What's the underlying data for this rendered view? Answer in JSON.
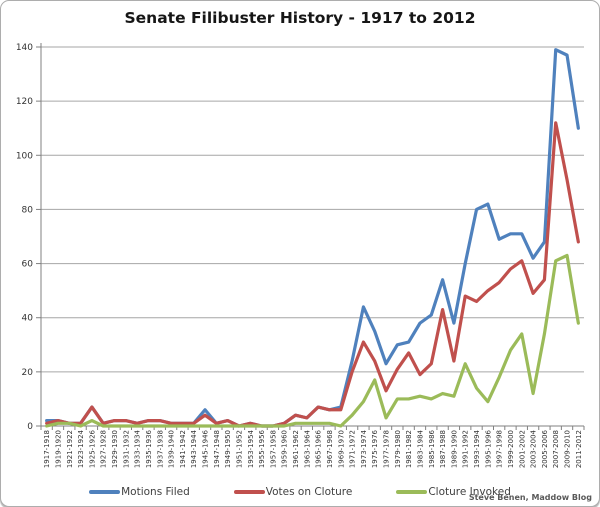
{
  "title": "Senate Filibuster History - 1917 to 2012",
  "credit": "Steve Benen, Maddow Blog",
  "chart_data": {
    "type": "line",
    "title": "Senate Filibuster History - 1917 to 2012",
    "xlabel": "",
    "ylabel": "",
    "y_min": 0,
    "y_max": 140,
    "y_step": 20,
    "y_ticks": [
      0,
      20,
      40,
      60,
      80,
      100,
      120,
      140
    ],
    "grid": "horizontal",
    "legend_position": "bottom",
    "categories": [
      "1917-1918",
      "1919-1920",
      "1921-1922",
      "1923-1924",
      "1925-1926",
      "1927-1928",
      "1929-1930",
      "1931-1932",
      "1933-1934",
      "1935-1936",
      "1937-1938",
      "1939-1940",
      "1941-1942",
      "1943-1944",
      "1945-1946",
      "1947-1948",
      "1949-1950",
      "1951-1952",
      "1953-1954",
      "1955-1956",
      "1957-1958",
      "1959-1960",
      "1961-1962",
      "1963-1964",
      "1965-1966",
      "1967-1968",
      "1969-1970",
      "1971-1972",
      "1973-1974",
      "1975-1976",
      "1977-1978",
      "1979-1980",
      "1981-1982",
      "1983-1984",
      "1985-1986",
      "1987-1988",
      "1989-1990",
      "1991-1992",
      "1993-1994",
      "1995-1996",
      "1997-1998",
      "1999-2000",
      "2001-2002",
      "2003-2004",
      "2005-2006",
      "2007-2008",
      "2009-2010",
      "2011-2012"
    ],
    "series": [
      {
        "name": "Motions Filed",
        "color": "#4F81BD",
        "values": [
          2,
          2,
          1,
          1,
          7,
          1,
          2,
          2,
          1,
          2,
          2,
          1,
          1,
          1,
          6,
          1,
          2,
          0,
          1,
          0,
          0,
          1,
          4,
          3,
          7,
          6,
          7,
          24,
          44,
          35,
          23,
          30,
          31,
          38,
          41,
          54,
          38,
          60,
          80,
          82,
          69,
          71,
          71,
          62,
          68,
          139,
          137,
          110
        ]
      },
      {
        "name": "Votes on Cloture",
        "color": "#C0504D",
        "values": [
          1,
          2,
          1,
          1,
          7,
          1,
          2,
          2,
          1,
          2,
          2,
          1,
          1,
          1,
          4,
          1,
          2,
          0,
          1,
          0,
          0,
          1,
          4,
          3,
          7,
          6,
          6,
          20,
          31,
          24,
          13,
          21,
          27,
          19,
          23,
          43,
          24,
          48,
          46,
          50,
          53,
          58,
          61,
          49,
          54,
          112,
          91,
          68
        ]
      },
      {
        "name": "Cloture Invoked",
        "color": "#9BBB59",
        "values": [
          0,
          1,
          1,
          0,
          2,
          0,
          0,
          0,
          0,
          0,
          0,
          0,
          0,
          0,
          0,
          0,
          0,
          0,
          0,
          0,
          0,
          0,
          1,
          1,
          1,
          1,
          0,
          4,
          9,
          17,
          3,
          10,
          10,
          11,
          10,
          12,
          11,
          23,
          14,
          9,
          18,
          28,
          34,
          12,
          34,
          61,
          63,
          38
        ]
      }
    ]
  }
}
